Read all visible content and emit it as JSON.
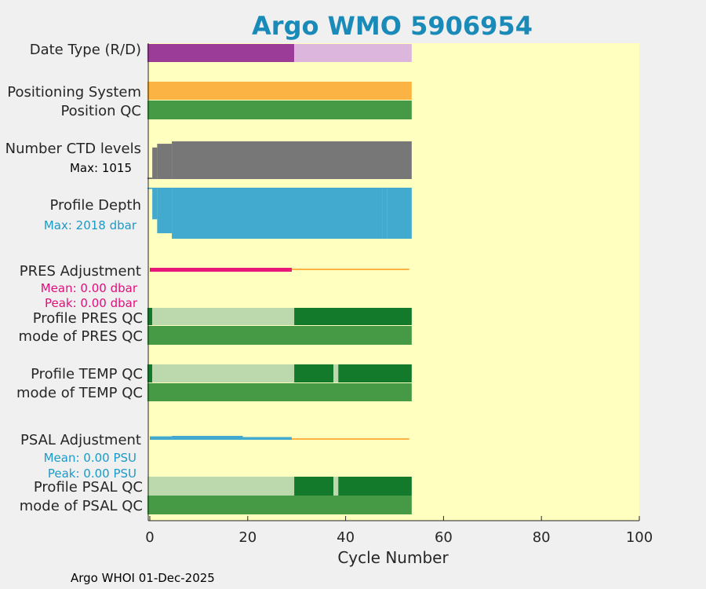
{
  "title": "Argo WMO 5906954",
  "footer": "Argo WHOI 01-Dec-2025",
  "colors": {
    "background": "#f0f0f0",
    "plot_bg": "#ffffc0",
    "title": "#1a8ab8",
    "realtime": "#9b3d98",
    "delayed": "#dcb6dc",
    "positioning": "#fbb444",
    "qc_green": "#469a46",
    "qc_dark": "#137a2c",
    "qc_light": "#bcd9ae",
    "ctd_gray": "#777777",
    "depth_blue": "#42aace",
    "pres_adj": "#e8187b",
    "psal_adj": "#42aace",
    "adj_line": "#fbb444"
  },
  "chart_data": {
    "type": "bar",
    "xlabel": "Cycle Number",
    "xlim": [
      -0.5,
      100
    ],
    "xticks": [
      0,
      20,
      40,
      60,
      80,
      100
    ],
    "row_labels": {
      "date_type": "Date Type (R/D)",
      "positioning": "Positioning System",
      "position_qc": "Position QC",
      "ctd_levels": "Number CTD levels",
      "profile_depth": "Profile Depth",
      "pres_adjustment": "PRES Adjustment",
      "profile_pres_qc": "Profile PRES QC",
      "mode_pres_qc": "mode of PRES QC",
      "profile_temp_qc": "Profile TEMP QC",
      "mode_temp_qc": "mode of TEMP QC",
      "psal_adjustment": "PSAL Adjustment",
      "profile_psal_qc": "Profile PSAL QC",
      "mode_psal_qc": "mode of PSAL QC"
    },
    "annotations": {
      "ctd_max": "Max: 1015",
      "depth_max": "Max: 2018 dbar",
      "pres_mean": "Mean: 0.00 dbar",
      "pres_peak": "Peak: 0.00 dbar",
      "psal_mean": "Mean: 0.00 PSU",
      "psal_peak": "Peak: 0.00 PSU"
    },
    "date_type_segments": [
      {
        "from": -0.5,
        "to": 29.5,
        "mode": "R"
      },
      {
        "from": 29.5,
        "to": 53.5,
        "mode": "D"
      }
    ],
    "positioning_range": [
      -0.5,
      53.5
    ],
    "position_qc_range": [
      -0.5,
      53.5
    ],
    "ctd_levels_steps": [
      {
        "from": -0.5,
        "to": 0.5,
        "value": 40
      },
      {
        "from": 0.5,
        "to": 1.5,
        "value": 850
      },
      {
        "from": 1.5,
        "to": 4.5,
        "value": 950
      },
      {
        "from": 4.5,
        "to": 53.5,
        "value": 1015
      }
    ],
    "ctd_max": 1015,
    "depth_steps": [
      {
        "from": -0.5,
        "to": 0.5,
        "value": 50
      },
      {
        "from": 0.5,
        "to": 1.5,
        "value": 1250
      },
      {
        "from": 1.5,
        "to": 4.5,
        "value": 1800
      },
      {
        "from": 4.5,
        "to": 47.5,
        "value": 2018
      },
      {
        "from": 47.5,
        "to": 48.5,
        "value": 2018
      },
      {
        "from": 48.5,
        "to": 53.5,
        "value": 2018
      }
    ],
    "depth_max": 2018,
    "pres_adjustment_segments": [
      {
        "from": 0,
        "to": 29,
        "kind": "adjusted"
      },
      {
        "from": 29,
        "to": 53,
        "kind": "none"
      }
    ],
    "profile_pres_qc_segments": [
      {
        "from": -0.5,
        "to": 0.5,
        "grade": "A"
      },
      {
        "from": 0.5,
        "to": 29.5,
        "grade": "light"
      },
      {
        "from": 29.5,
        "to": 53.5,
        "grade": "A"
      }
    ],
    "mode_pres_qc_range": [
      -0.5,
      53.5
    ],
    "profile_temp_qc_segments": [
      {
        "from": -0.5,
        "to": 0.5,
        "grade": "A"
      },
      {
        "from": 0.5,
        "to": 29.5,
        "grade": "light"
      },
      {
        "from": 29.5,
        "to": 37.5,
        "grade": "A"
      },
      {
        "from": 37.5,
        "to": 38.5,
        "grade": "light"
      },
      {
        "from": 38.5,
        "to": 53.5,
        "grade": "A"
      }
    ],
    "mode_temp_qc_range": [
      -0.5,
      53.5
    ],
    "psal_adjustment_segments": [
      {
        "from": 0,
        "to": 4.5,
        "kind": "adjusted",
        "level": 0.8
      },
      {
        "from": 4.5,
        "to": 19,
        "kind": "adjusted",
        "level": 1.0
      },
      {
        "from": 19,
        "to": 29,
        "kind": "adjusted",
        "level": 0.5
      },
      {
        "from": 29,
        "to": 53,
        "kind": "none"
      }
    ],
    "profile_psal_qc_segments": [
      {
        "from": -0.5,
        "to": 29.5,
        "grade": "light"
      },
      {
        "from": 29.5,
        "to": 37.5,
        "grade": "A"
      },
      {
        "from": 37.5,
        "to": 38.5,
        "grade": "light"
      },
      {
        "from": 38.5,
        "to": 53.5,
        "grade": "A"
      }
    ],
    "mode_psal_qc_range": [
      -0.5,
      53.5
    ]
  }
}
